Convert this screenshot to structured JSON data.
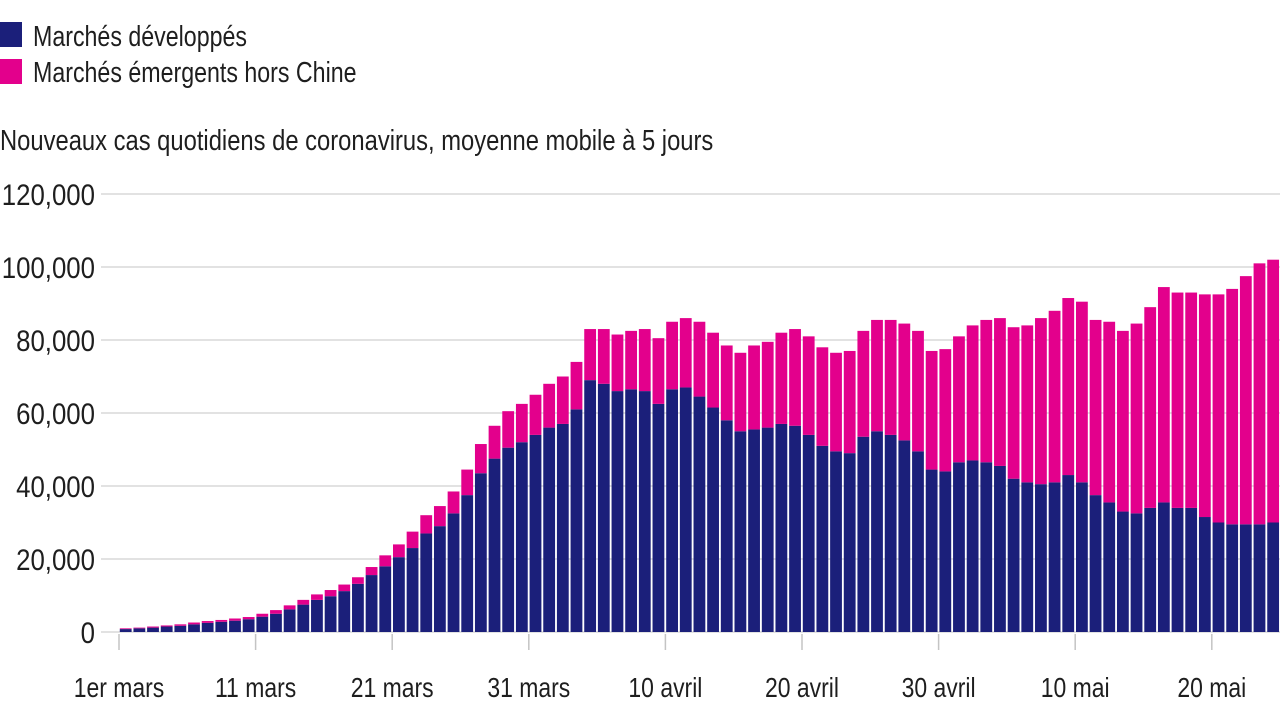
{
  "chart_data": {
    "type": "bar",
    "stacked": true,
    "title": "Nouveaux cas quotidiens de coronavirus, moyenne mobile à 5 jours",
    "legend_position": "top-left",
    "grid": true,
    "ylim": [
      0,
      120000
    ],
    "y_ticks": [
      "0",
      "20,000",
      "40,000",
      "60,000",
      "80,000",
      "100,000",
      "120,000"
    ],
    "x_ticks": [
      "1er mars",
      "11 mars",
      "21 mars",
      "31 mars",
      "10 avril",
      "20 avril",
      "30 avril",
      "10 mai",
      "20 mai"
    ],
    "x": [
      "1er mars",
      "2 mars",
      "3 mars",
      "4 mars",
      "5 mars",
      "6 mars",
      "7 mars",
      "8 mars",
      "9 mars",
      "10 mars",
      "11 mars",
      "12 mars",
      "13 mars",
      "14 mars",
      "15 mars",
      "16 mars",
      "17 mars",
      "18 mars",
      "19 mars",
      "20 mars",
      "21 mars",
      "22 mars",
      "23 mars",
      "24 mars",
      "25 mars",
      "26 mars",
      "27 mars",
      "28 mars",
      "29 mars",
      "30 mars",
      "31 mars",
      "1er avril",
      "2 avril",
      "3 avril",
      "4 avril",
      "5 avril",
      "6 avril",
      "7 avril",
      "8 avril",
      "9 avril",
      "10 avril",
      "11 avril",
      "12 avril",
      "13 avril",
      "14 avril",
      "15 avril",
      "16 avril",
      "17 avril",
      "18 avril",
      "19 avril",
      "20 avril",
      "21 avril",
      "22 avril",
      "23 avril",
      "24 avril",
      "25 avril",
      "26 avril",
      "27 avril",
      "28 avril",
      "29 avril",
      "30 avril",
      "1er mai",
      "2 mai",
      "3 mai",
      "4 mai",
      "5 mai",
      "6 mai",
      "7 mai",
      "8 mai",
      "9 mai",
      "10 mai",
      "11 mai",
      "12 mai",
      "13 mai",
      "14 mai",
      "15 mai",
      "16 mai",
      "17 mai",
      "18 mai",
      "19 mai",
      "20 mai",
      "21 mai",
      "22 mai",
      "23 mai",
      "24 mai"
    ],
    "series": [
      {
        "name": "Marchés développés",
        "color": "#1b1f7a",
        "values": [
          800,
          1000,
          1200,
          1500,
          1700,
          2100,
          2500,
          2800,
          3100,
          3500,
          4200,
          5000,
          6200,
          7500,
          8800,
          9800,
          11200,
          13200,
          15600,
          18000,
          20500,
          23000,
          27000,
          29000,
          32500,
          37500,
          43500,
          47500,
          50500,
          52000,
          54000,
          56000,
          57000,
          61000,
          69000,
          68000,
          66000,
          66500,
          66000,
          62500,
          66500,
          67000,
          64500,
          61500,
          58000,
          55000,
          55500,
          56000,
          57000,
          56500,
          54000,
          51000,
          49500,
          49000,
          53500,
          55000,
          54000,
          52500,
          49500,
          44500,
          44000,
          46500,
          47000,
          46500,
          45500,
          42000,
          41000,
          40500,
          41000,
          43000,
          41000,
          37500,
          35500,
          33000,
          32500,
          34000,
          35500,
          34000,
          34000,
          31500,
          30000,
          29500,
          29500,
          29500,
          30000
        ]
      },
      {
        "name": "Marchés émergents hors Chine",
        "color": "#e3008c",
        "values": [
          200,
          200,
          300,
          300,
          400,
          500,
          500,
          500,
          600,
          600,
          800,
          1000,
          1100,
          1300,
          1500,
          1700,
          1800,
          1800,
          2200,
          3000,
          3500,
          4500,
          5000,
          5500,
          6000,
          7000,
          8000,
          9000,
          10000,
          10500,
          11000,
          12000,
          13000,
          13000,
          14000,
          15000,
          15500,
          16000,
          17000,
          18000,
          18500,
          19000,
          20500,
          20500,
          20500,
          21500,
          23000,
          23500,
          25000,
          26500,
          27000,
          27000,
          27000,
          28000,
          29000,
          30500,
          31500,
          32000,
          33000,
          32500,
          33500,
          34500,
          37000,
          39000,
          40500,
          41500,
          43000,
          45500,
          47000,
          48500,
          49500,
          48000,
          49500,
          49500,
          52000,
          55000,
          59000,
          59000,
          59000,
          61000,
          62500,
          64500,
          68000,
          71500,
          72000
        ]
      }
    ]
  }
}
